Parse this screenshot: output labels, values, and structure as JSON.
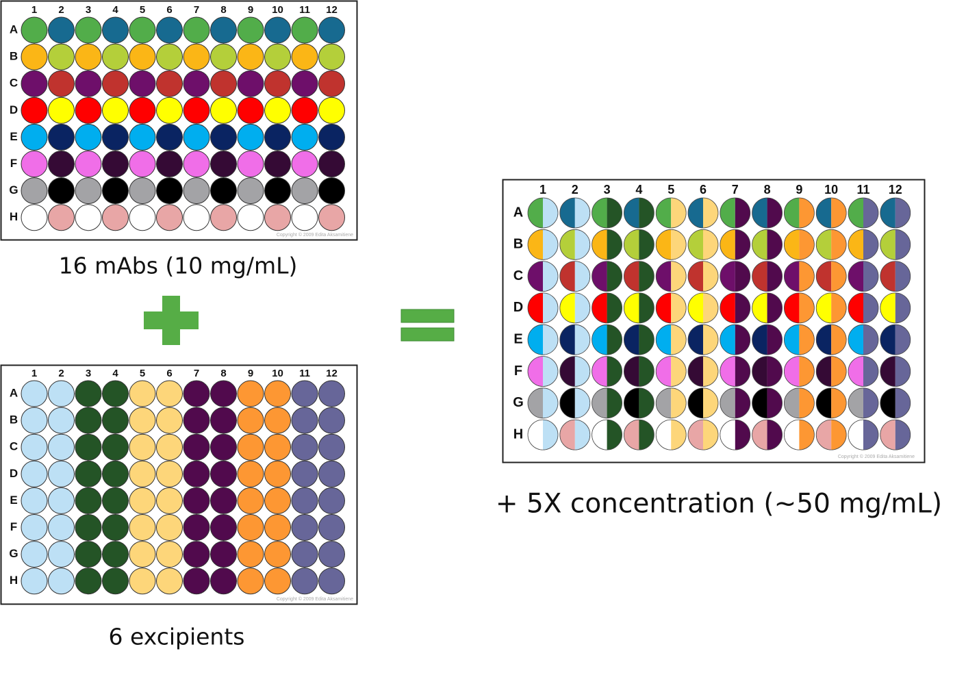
{
  "plate_mab": {
    "column_labels": [
      "1",
      "2",
      "3",
      "4",
      "5",
      "6",
      "7",
      "8",
      "9",
      "10",
      "11",
      "12"
    ],
    "row_labels": [
      "A",
      "B",
      "C",
      "D",
      "E",
      "F",
      "G",
      "H"
    ],
    "copyright": "Copyright © 2009 Edita Aksamitiene",
    "caption": "16 mAbs (10 mg/mL)",
    "row_colors": [
      [
        "#52ad4a",
        "#176a90"
      ],
      [
        "#fbb616",
        "#b4cf3a"
      ],
      [
        "#6e0f6a",
        "#c0332e"
      ],
      [
        "#ff0000",
        "#ffff00"
      ],
      [
        "#00aeef",
        "#0a2462"
      ],
      [
        "#f06ee8",
        "#350a35"
      ],
      [
        "#a3a3a6",
        "#000000"
      ],
      [
        "#ffffff",
        "#e8a6a6"
      ]
    ]
  },
  "plate_excipient": {
    "column_labels": [
      "1",
      "2",
      "3",
      "4",
      "5",
      "6",
      "7",
      "8",
      "9",
      "10",
      "11",
      "12"
    ],
    "row_labels": [
      "A",
      "B",
      "C",
      "D",
      "E",
      "F",
      "G",
      "H"
    ],
    "copyright": "Copyright © 2009 Edita Aksamitiene",
    "caption": "6 excipients",
    "column_colors": [
      "#bde0f5",
      "#245426",
      "#fdd67a",
      "#510a4d",
      "#fd9733",
      "#676699"
    ]
  },
  "plate_mix": {
    "column_labels": [
      "1",
      "2",
      "3",
      "4",
      "5",
      "6",
      "7",
      "8",
      "9",
      "10",
      "11",
      "12"
    ],
    "row_labels": [
      "A",
      "B",
      "C",
      "D",
      "E",
      "F",
      "G",
      "H"
    ],
    "copyright": "Copyright © 2009 Edita Aksamitiene",
    "caption": "+ 5X concentration (~50 mg/mL)"
  }
}
